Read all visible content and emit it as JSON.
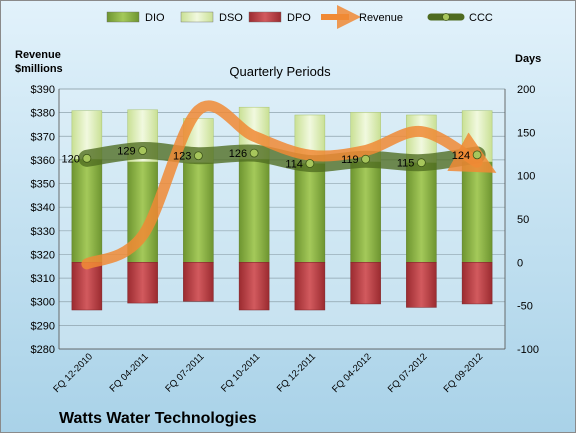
{
  "chart_data": {
    "type": "bar",
    "title": "Quarterly Periods",
    "company": "Watts Water Technologies",
    "left_axis": {
      "label_line1": "Revenue",
      "label_line2": "$millions",
      "range": [
        280,
        390
      ],
      "step": 10,
      "prefix": "$"
    },
    "right_axis": {
      "label": "Days",
      "range": [
        -100,
        200
      ],
      "step": 50
    },
    "categories": [
      "FQ 12-2010",
      "FQ 04-2011",
      "FQ 07-2011",
      "FQ 10-2011",
      "FQ 12-2011",
      "FQ 04-2012",
      "FQ 07-2012",
      "FQ 09-2012"
    ],
    "legend": [
      "DIO",
      "DSO",
      "DPO",
      "Revenue",
      "CCC"
    ],
    "series": [
      {
        "name": "DIO",
        "axis": "right",
        "kind": "stacked-bar",
        "values": [
          119,
          116,
          115,
          119,
          114,
          116,
          115,
          116
        ]
      },
      {
        "name": "DSO",
        "axis": "right",
        "kind": "stacked-bar",
        "values": [
          56,
          60,
          51,
          60,
          56,
          57,
          55,
          59
        ]
      },
      {
        "name": "DPO",
        "axis": "right",
        "kind": "negative-bar",
        "values": [
          -55,
          -47,
          -45,
          -55,
          -55,
          -48,
          -52,
          -48
        ]
      },
      {
        "name": "Revenue",
        "axis": "left",
        "kind": "line",
        "values": [
          316,
          328,
          381,
          370,
          362,
          364,
          372,
          359
        ]
      },
      {
        "name": "CCC",
        "axis": "right",
        "kind": "line",
        "values": [
          120,
          129,
          123,
          126,
          114,
          119,
          115,
          124
        ]
      }
    ],
    "colors": {
      "DIO": "#7fa43a",
      "DSO": "#d9ecb0",
      "DPO": "#b23a3e",
      "Revenue": "#f08a35",
      "CCC": "#4e6b20"
    },
    "grid": true,
    "legend_position": "top"
  }
}
